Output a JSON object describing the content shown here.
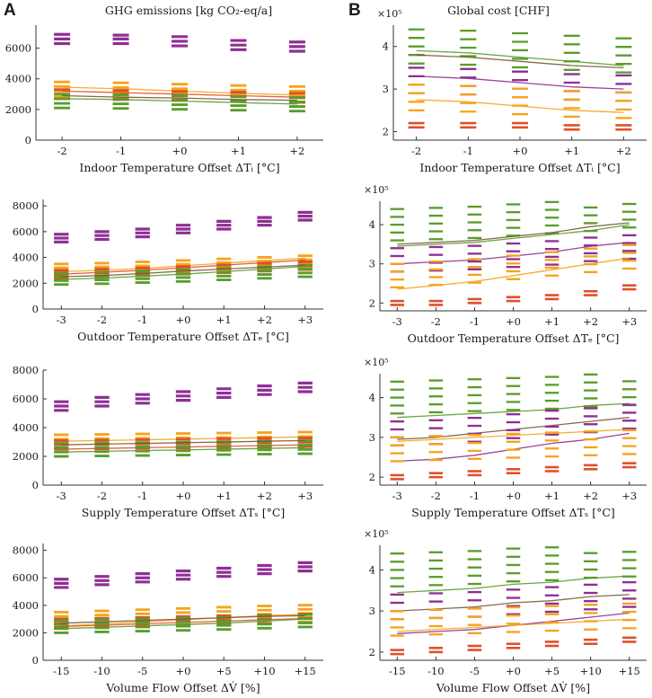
{
  "panel_labels": [
    "A",
    "B"
  ],
  "column_titles": {
    "left": "GHG emissions [kg CO₂-eq/a]",
    "right": "Global cost [CHF]"
  },
  "right_axis_exponent": "×10⁵",
  "colors": {
    "purple": "#8e2f94",
    "orange": "#f5a41c",
    "green": "#5a9d2c",
    "red": "#e0502a",
    "brown": "#7a5a3a",
    "axis": "#333333"
  },
  "chart_data": [
    {
      "id": "A1",
      "type": "scatter",
      "xlabel": "Indoor Temperature Offset ΔTᵢ [°C]",
      "categories": [
        "-2",
        "-1",
        "+0",
        "+1",
        "+2"
      ],
      "ylim": [
        0,
        7500
      ],
      "yticks": [
        0,
        2000,
        4000,
        6000
      ],
      "series": [
        {
          "name": "purple",
          "color": "purple",
          "mode": "marks",
          "groups": [
            [
              6300,
              6600,
              6900
            ],
            [
              6300,
              6600,
              6850
            ],
            [
              6150,
              6450,
              6750
            ],
            [
              5900,
              6200,
              6500
            ],
            [
              5800,
              6100,
              6400
            ]
          ]
        },
        {
          "name": "orange",
          "color": "orange",
          "mode": "lineband",
          "values": [
            3450,
            3350,
            3200,
            3050,
            2950
          ],
          "spread": [
            2800,
            3200,
            3500,
            3800
          ]
        },
        {
          "name": "red",
          "color": "red",
          "mode": "lineband",
          "values": [
            3200,
            3100,
            3000,
            2900,
            2800
          ],
          "spread": [
            2700,
            3000,
            3300
          ]
        },
        {
          "name": "green",
          "color": "green",
          "mode": "lineband",
          "values": [
            2700,
            2650,
            2550,
            2450,
            2350
          ],
          "spread": [
            2100,
            2400,
            2700,
            3000
          ]
        },
        {
          "name": "brown",
          "color": "brown",
          "mode": "line",
          "values": [
            2900,
            2800,
            2750,
            2650,
            2600
          ]
        }
      ]
    },
    {
      "id": "B1",
      "type": "scatter",
      "xlabel": "Indoor Temperature Offset ΔTᵢ [°C]",
      "categories": [
        "-2",
        "-1",
        "+0",
        "+1",
        "+2"
      ],
      "ylim": [
        1.8,
        4.5
      ],
      "yticks": [
        2,
        3,
        4
      ],
      "series": [
        {
          "name": "green-top",
          "color": "green",
          "mode": "lineband",
          "values": [
            3.9,
            3.85,
            3.75,
            3.65,
            3.55
          ],
          "spread": [
            3.6,
            3.8,
            4.0,
            4.2,
            4.4
          ]
        },
        {
          "name": "brown",
          "color": "brown",
          "mode": "line",
          "values": [
            3.8,
            3.75,
            3.65,
            3.55,
            3.5
          ]
        },
        {
          "name": "purple",
          "color": "purple",
          "mode": "lineband",
          "values": [
            3.3,
            3.25,
            3.15,
            3.05,
            3.0
          ],
          "spread": [
            2.9,
            3.1,
            3.3,
            3.5
          ]
        },
        {
          "name": "orange",
          "color": "orange",
          "mode": "lineband",
          "values": [
            2.75,
            2.7,
            2.6,
            2.5,
            2.45
          ],
          "spread": [
            2.5,
            2.7,
            2.9,
            3.1
          ]
        },
        {
          "name": "red",
          "color": "red",
          "mode": "marks",
          "groups": [
            [
              2.1,
              2.2
            ],
            [
              2.1,
              2.2
            ],
            [
              2.1,
              2.2
            ],
            [
              2.05,
              2.15
            ],
            [
              2.05,
              2.15
            ]
          ]
        }
      ]
    },
    {
      "id": "A2",
      "type": "scatter",
      "xlabel": "Outdoor Temperature Offset ΔTₑ [°C]",
      "categories": [
        "-3",
        "-2",
        "-1",
        "+0",
        "+1",
        "+2",
        "+3"
      ],
      "ylim": [
        0,
        8500
      ],
      "yticks": [
        0,
        2000,
        4000,
        6000,
        8000
      ],
      "series": [
        {
          "name": "purple",
          "color": "purple",
          "mode": "marks",
          "groups": [
            [
              5200,
              5500,
              5800
            ],
            [
              5400,
              5700,
              6000
            ],
            [
              5600,
              5900,
              6200
            ],
            [
              5900,
              6200,
              6500
            ],
            [
              6200,
              6500,
              6800
            ],
            [
              6500,
              6800,
              7100
            ],
            [
              6900,
              7200,
              7500
            ]
          ]
        },
        {
          "name": "orange",
          "color": "orange",
          "mode": "lineband",
          "values": [
            2900,
            3000,
            3150,
            3350,
            3550,
            3750,
            3950
          ],
          "spread": [
            2600,
            2900,
            3200,
            3500
          ]
        },
        {
          "name": "red",
          "color": "red",
          "mode": "lineband",
          "values": [
            2700,
            2850,
            3000,
            3200,
            3400,
            3600,
            3800
          ],
          "spread": [
            2400,
            2700,
            3000
          ]
        },
        {
          "name": "green",
          "color": "green",
          "mode": "lineband",
          "values": [
            2300,
            2400,
            2550,
            2700,
            2900,
            3100,
            3300
          ],
          "spread": [
            1900,
            2200,
            2500,
            2800
          ]
        },
        {
          "name": "brown",
          "color": "brown",
          "mode": "line",
          "values": [
            2500,
            2600,
            2750,
            2950,
            3100,
            3250,
            3400
          ]
        }
      ]
    },
    {
      "id": "B2",
      "type": "scatter",
      "xlabel": "Outdoor Temperature Offset ΔTₑ [°C]",
      "categories": [
        "-3",
        "-2",
        "-1",
        "+0",
        "+1",
        "+2",
        "+3"
      ],
      "ylim": [
        1.8,
        4.6
      ],
      "yticks": [
        2,
        3,
        4
      ],
      "series": [
        {
          "name": "green-top",
          "color": "green",
          "mode": "lineband",
          "values": [
            3.45,
            3.5,
            3.55,
            3.65,
            3.75,
            3.85,
            4.0
          ],
          "spread": [
            3.6,
            3.8,
            4.0,
            4.2,
            4.4
          ]
        },
        {
          "name": "brown",
          "color": "brown",
          "mode": "line",
          "values": [
            3.5,
            3.55,
            3.6,
            3.7,
            3.8,
            3.95,
            4.05
          ]
        },
        {
          "name": "purple",
          "color": "purple",
          "mode": "lineband",
          "values": [
            3.0,
            3.05,
            3.1,
            3.2,
            3.3,
            3.45,
            3.55
          ],
          "spread": [
            2.8,
            3.0,
            3.2,
            3.4
          ]
        },
        {
          "name": "orange",
          "color": "orange",
          "mode": "lineband",
          "values": [
            2.35,
            2.45,
            2.55,
            2.7,
            2.85,
            3.0,
            3.15
          ],
          "spread": [
            2.4,
            2.6,
            2.8,
            3.0
          ]
        },
        {
          "name": "red",
          "color": "red",
          "mode": "marks",
          "groups": [
            [
              1.95,
              2.05
            ],
            [
              1.95,
              2.05
            ],
            [
              2.0,
              2.1
            ],
            [
              2.05,
              2.15
            ],
            [
              2.1,
              2.2
            ],
            [
              2.2,
              2.3
            ],
            [
              2.35,
              2.45
            ]
          ]
        }
      ]
    },
    {
      "id": "A3",
      "type": "scatter",
      "xlabel": "Supply Temperature Offset ΔTₛ [°C]",
      "categories": [
        "-3",
        "-2",
        "-1",
        "+0",
        "+1",
        "+2",
        "+3"
      ],
      "ylim": [
        0,
        8000
      ],
      "yticks": [
        0,
        2000,
        4000,
        6000,
        8000
      ],
      "series": [
        {
          "name": "purple",
          "color": "purple",
          "mode": "marks",
          "groups": [
            [
              5200,
              5500,
              5800
            ],
            [
              5500,
              5800,
              6100
            ],
            [
              5700,
              6000,
              6300
            ],
            [
              5900,
              6200,
              6500
            ],
            [
              6100,
              6400,
              6700
            ],
            [
              6300,
              6600,
              6900
            ],
            [
              6500,
              6800,
              7100
            ]
          ]
        },
        {
          "name": "orange",
          "color": "orange",
          "mode": "lineband",
          "values": [
            3050,
            3100,
            3150,
            3200,
            3250,
            3300,
            3350
          ],
          "spread": [
            2600,
            2900,
            3200,
            3500
          ]
        },
        {
          "name": "red",
          "color": "red",
          "mode": "lineband",
          "values": [
            2500,
            2550,
            2600,
            2650,
            2700,
            2750,
            2800
          ],
          "spread": [
            2500,
            2800,
            3100
          ]
        },
        {
          "name": "green",
          "color": "green",
          "mode": "lineband",
          "values": [
            2300,
            2350,
            2400,
            2450,
            2500,
            2550,
            2600
          ],
          "spread": [
            2000,
            2300,
            2600,
            2900
          ]
        },
        {
          "name": "brown",
          "color": "brown",
          "mode": "line",
          "values": [
            2800,
            2850,
            2900,
            2950,
            3000,
            3050,
            3100
          ]
        }
      ]
    },
    {
      "id": "B3",
      "type": "scatter",
      "xlabel": "Supply Temperature Offset ΔTₛ [°C]",
      "categories": [
        "-3",
        "-2",
        "-1",
        "+0",
        "+1",
        "+2",
        "+3"
      ],
      "ylim": [
        1.8,
        4.6
      ],
      "yticks": [
        2,
        3,
        4
      ],
      "series": [
        {
          "name": "green-top",
          "color": "green",
          "mode": "lineband",
          "values": [
            3.5,
            3.55,
            3.6,
            3.65,
            3.7,
            3.8,
            3.85
          ],
          "spread": [
            3.6,
            3.8,
            4.0,
            4.2,
            4.4
          ]
        },
        {
          "name": "brown",
          "color": "brown",
          "mode": "line",
          "values": [
            2.95,
            3.0,
            3.1,
            3.2,
            3.3,
            3.4,
            3.5
          ]
        },
        {
          "name": "purple",
          "color": "purple",
          "mode": "lineband",
          "values": [
            2.4,
            2.45,
            2.55,
            2.7,
            2.85,
            2.95,
            3.1
          ],
          "spread": [
            2.8,
            3.0,
            3.2,
            3.4
          ]
        },
        {
          "name": "orange",
          "color": "orange",
          "mode": "lineband",
          "values": [
            2.9,
            2.95,
            3.0,
            3.05,
            3.1,
            3.15,
            3.2
          ],
          "spread": [
            2.4,
            2.6,
            2.8,
            3.0
          ]
        },
        {
          "name": "red",
          "color": "red",
          "mode": "marks",
          "groups": [
            [
              1.95,
              2.05
            ],
            [
              2.0,
              2.1
            ],
            [
              2.05,
              2.15
            ],
            [
              2.1,
              2.2
            ],
            [
              2.15,
              2.25
            ],
            [
              2.2,
              2.3
            ],
            [
              2.25,
              2.35
            ]
          ]
        }
      ]
    },
    {
      "id": "A4",
      "type": "scatter",
      "xlabel": "Volume Flow Offset ΔV̇ [%]",
      "categories": [
        "-15",
        "-10",
        "-5",
        "+0",
        "+5",
        "+10",
        "+15"
      ],
      "ylim": [
        0,
        8500
      ],
      "yticks": [
        0,
        2000,
        4000,
        6000,
        8000
      ],
      "series": [
        {
          "name": "purple",
          "color": "purple",
          "mode": "marks",
          "groups": [
            [
              5300,
              5600,
              5900
            ],
            [
              5500,
              5800,
              6100
            ],
            [
              5700,
              6000,
              6300
            ],
            [
              5900,
              6200,
              6500
            ],
            [
              6100,
              6400,
              6700
            ],
            [
              6300,
              6600,
              6900
            ],
            [
              6500,
              6800,
              7100
            ]
          ]
        },
        {
          "name": "orange",
          "color": "orange",
          "mode": "lineband",
          "values": [
            2500,
            2650,
            2800,
            2950,
            3100,
            3250,
            3350
          ],
          "spread": [
            2600,
            2900,
            3200,
            3500
          ]
        },
        {
          "name": "red",
          "color": "red",
          "mode": "lineband",
          "values": [
            2450,
            2550,
            2650,
            2750,
            2850,
            2950,
            3050
          ],
          "spread": [
            2400,
            2700,
            3000
          ]
        },
        {
          "name": "green",
          "color": "green",
          "mode": "lineband",
          "values": [
            2300,
            2400,
            2500,
            2600,
            2700,
            2850,
            3000
          ],
          "spread": [
            2000,
            2300,
            2600,
            2900
          ]
        },
        {
          "name": "brown",
          "color": "brown",
          "mode": "line",
          "values": [
            2700,
            2800,
            2900,
            3000,
            3100,
            3200,
            3250
          ]
        }
      ]
    },
    {
      "id": "B4",
      "type": "scatter",
      "xlabel": "Volume Flow Offset ΔV̇ [%]",
      "categories": [
        "-15",
        "-10",
        "-5",
        "+0",
        "+5",
        "+10",
        "+15"
      ],
      "ylim": [
        1.8,
        4.6
      ],
      "yticks": [
        2,
        3,
        4
      ],
      "series": [
        {
          "name": "green-top",
          "color": "green",
          "mode": "lineband",
          "values": [
            3.45,
            3.5,
            3.55,
            3.65,
            3.7,
            3.8,
            3.85
          ],
          "spread": [
            3.6,
            3.8,
            4.0,
            4.2,
            4.4
          ]
        },
        {
          "name": "brown",
          "color": "brown",
          "mode": "line",
          "values": [
            3.0,
            3.05,
            3.1,
            3.2,
            3.25,
            3.35,
            3.4
          ]
        },
        {
          "name": "purple",
          "color": "purple",
          "mode": "lineband",
          "values": [
            2.45,
            2.5,
            2.55,
            2.65,
            2.75,
            2.85,
            2.95
          ],
          "spread": [
            2.8,
            3.0,
            3.2,
            3.4
          ]
        },
        {
          "name": "orange",
          "color": "orange",
          "mode": "lineband",
          "values": [
            2.5,
            2.55,
            2.6,
            2.65,
            2.7,
            2.75,
            2.8
          ],
          "spread": [
            2.4,
            2.6,
            2.8,
            3.0
          ]
        },
        {
          "name": "red",
          "color": "red",
          "mode": "marks",
          "groups": [
            [
              1.95,
              2.05
            ],
            [
              2.0,
              2.1
            ],
            [
              2.05,
              2.15
            ],
            [
              2.1,
              2.2
            ],
            [
              2.15,
              2.25
            ],
            [
              2.2,
              2.3
            ],
            [
              2.25,
              2.35
            ]
          ]
        }
      ]
    }
  ]
}
